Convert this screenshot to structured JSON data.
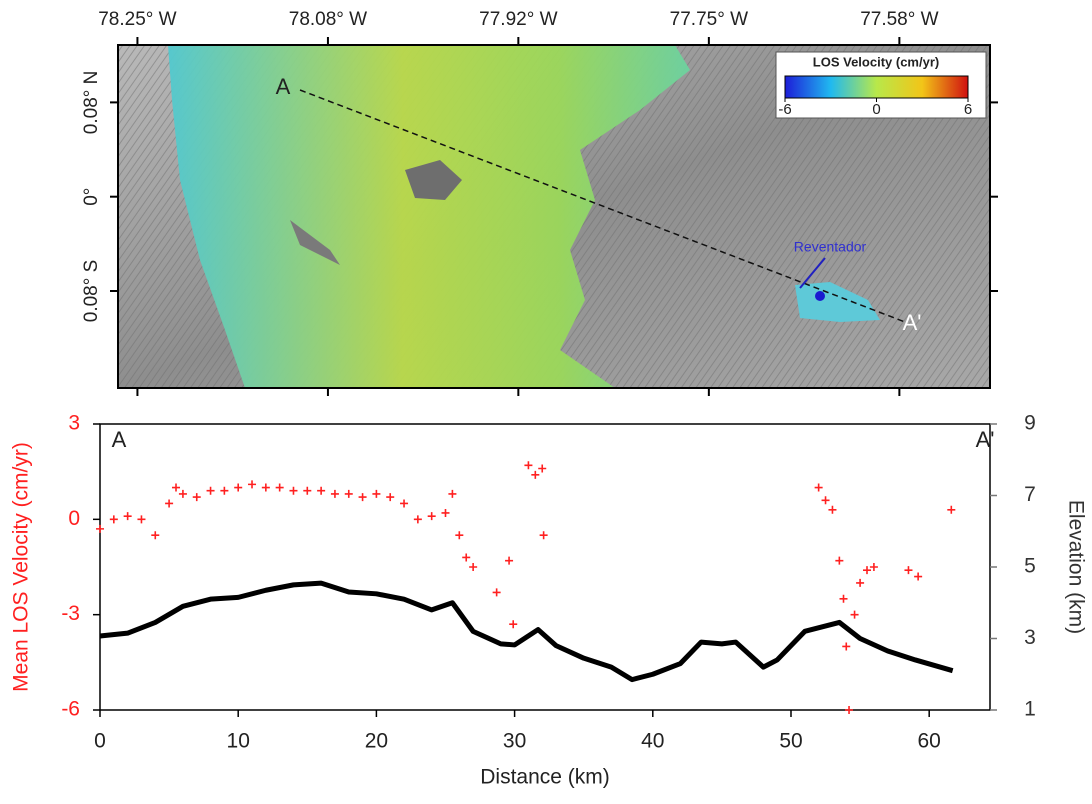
{
  "chart_data": [
    {
      "type": "map",
      "xlim": [
        -78.267,
        -77.504
      ],
      "ylim": [
        -0.169,
        0.134
      ],
      "xticks": [
        {
          "value": -78.25,
          "label": "78.25° W"
        },
        {
          "value": -78.0833,
          "label": "78.08° W"
        },
        {
          "value": -77.9167,
          "label": "77.92° W"
        },
        {
          "value": -77.75,
          "label": "77.75° W"
        },
        {
          "value": -77.5833,
          "label": "77.58° W"
        }
      ],
      "yticks": [
        {
          "value": 0.0833,
          "label": "0.08° N"
        },
        {
          "value": 0,
          "label": "0°"
        },
        {
          "value": -0.0833,
          "label": "0.08° S"
        }
      ],
      "annotations": [
        "A",
        "A'",
        "Reventador"
      ],
      "colorbar": {
        "title": "LOS Velocity (cm/yr)",
        "lim": [
          -6,
          6
        ],
        "ticks": [
          -6,
          0,
          6
        ]
      }
    },
    {
      "type": "scatter",
      "xlabel": "Distance (km)",
      "ylabel": "Mean LOS Velocity (cm/yr)",
      "y2label": "Elevation (km)",
      "xlim": [
        0,
        64.4
      ],
      "ylim": [
        -6,
        3
      ],
      "y2lim": [
        1,
        9
      ],
      "xticks": [
        0,
        10,
        20,
        30,
        40,
        50,
        60
      ],
      "yticks": [
        -6,
        -3,
        0,
        3
      ],
      "y2ticks": [
        1,
        3,
        5,
        7,
        9
      ],
      "annotations": [
        "A",
        "A'"
      ],
      "series": [
        {
          "color": "#ff2020",
          "marker": "plus",
          "x": [
            0,
            1,
            2,
            3,
            4,
            5,
            5.5,
            6,
            7,
            8,
            9,
            10,
            11,
            12,
            13,
            14,
            15,
            16,
            17,
            18,
            19,
            20,
            21,
            22,
            23,
            24,
            25,
            25.5,
            26,
            26.5,
            27,
            28.7,
            29.6,
            29.9,
            31,
            31.5,
            32,
            32.1,
            52,
            52.5,
            53,
            53.5,
            53.8,
            54,
            54.2,
            54.6,
            55,
            55.5,
            56,
            58.5,
            59.2,
            61.6
          ],
          "values": [
            -0.3,
            0,
            0.1,
            0,
            -0.5,
            0.5,
            1.0,
            0.8,
            0.7,
            0.9,
            0.9,
            1.0,
            1.1,
            1.0,
            1.0,
            0.9,
            0.9,
            0.9,
            0.8,
            0.8,
            0.7,
            0.8,
            0.7,
            0.5,
            0,
            0.1,
            0.2,
            0.8,
            -0.5,
            -1.2,
            -1.5,
            -2.3,
            -1.3,
            -3.3,
            1.7,
            1.4,
            1.6,
            -0.5,
            1.0,
            0.6,
            0.3,
            -1.3,
            -2.5,
            -4.0,
            -6.0,
            -3.0,
            -2.0,
            -1.6,
            -1.5,
            -1.6,
            -1.8,
            0.3
          ]
        },
        {
          "color": "#000000",
          "marker": "line",
          "axis": "y2",
          "x": [
            0,
            2,
            4,
            6,
            8,
            10,
            12,
            14,
            16,
            18,
            20,
            22,
            24,
            25.5,
            27,
            29,
            30,
            31.7,
            33,
            35,
            37,
            38.5,
            40,
            42,
            43.5,
            45,
            46,
            48,
            49,
            51,
            53.5,
            55,
            57,
            59,
            61.7
          ],
          "values": [
            3.07,
            3.15,
            3.45,
            3.9,
            4.1,
            4.15,
            4.35,
            4.5,
            4.55,
            4.3,
            4.25,
            4.1,
            3.8,
            4.0,
            3.2,
            2.85,
            2.82,
            3.25,
            2.8,
            2.45,
            2.2,
            1.85,
            2.0,
            2.3,
            2.9,
            2.85,
            2.9,
            2.2,
            2.4,
            3.2,
            3.45,
            3.0,
            2.65,
            2.4,
            2.1
          ]
        }
      ]
    }
  ]
}
